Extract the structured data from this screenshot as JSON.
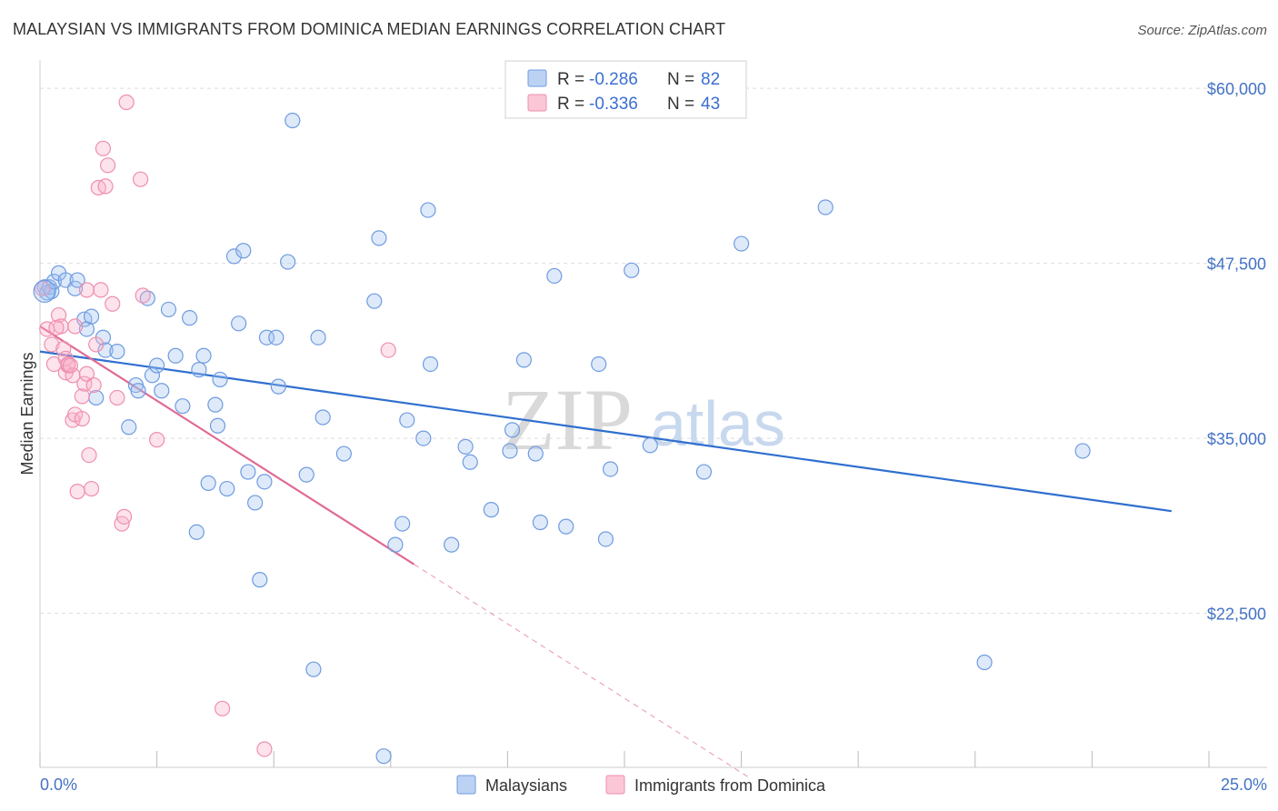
{
  "header": {
    "title": "MALAYSIAN VS IMMIGRANTS FROM DOMINICA MEDIAN EARNINGS CORRELATION CHART",
    "source": "Source: ZipAtlas.com"
  },
  "watermark": {
    "zip": "ZIP",
    "atlas": "atlas"
  },
  "legend": {
    "r_label": "R =",
    "n_label": "N =",
    "rows": [
      {
        "name": "Malaysians",
        "r": "-0.286",
        "n": "82",
        "fill": "#bcd2f3",
        "stroke": "#6f9be0"
      },
      {
        "name": "Immigrants from Dominica",
        "r": "-0.336",
        "n": "43",
        "fill": "#fbc7d7",
        "stroke": "#ee8fae"
      }
    ]
  },
  "colors": {
    "blue_point_fill": "rgba(160,195,240,0.35)",
    "blue_point_stroke": "#6f9be0",
    "blue_line": "#2f6fcf",
    "pink_point_fill": "rgba(248,175,200,0.35)",
    "pink_point_stroke": "#ee8fae",
    "pink_line": "#e06a95",
    "grid": "#dddddd",
    "axis_text": "#4472c4"
  },
  "chart_data": {
    "type": "scatter",
    "title": "MALAYSIAN VS IMMIGRANTS FROM DOMINICA MEDIAN EARNINGS CORRELATION CHART",
    "xlabel": "",
    "ylabel": "Median Earnings",
    "xlim": [
      0,
      25
    ],
    "ylim": [
      11500,
      61500
    ],
    "x_tick_labels": [
      "0.0%",
      "25.0%"
    ],
    "y_ticks": [
      {
        "value": 22500,
        "label": "$22,500"
      },
      {
        "value": 35000,
        "label": "$35,000"
      },
      {
        "value": 47500,
        "label": "$47,500"
      },
      {
        "value": 60000,
        "label": "$60,000"
      }
    ],
    "grid": true,
    "series": [
      {
        "name": "Malaysians",
        "r": -0.286,
        "n": 82,
        "trend": {
          "x0": 0.0,
          "y0": 41200,
          "x1": 24.2,
          "y1": 29800,
          "dashed_to_x": null
        },
        "points": [
          [
            0.1,
            45800
          ],
          [
            0.15,
            45400
          ],
          [
            0.2,
            45800
          ],
          [
            0.25,
            45500
          ],
          [
            0.3,
            46200
          ],
          [
            0.4,
            46800
          ],
          [
            0.55,
            46300
          ],
          [
            0.75,
            45700
          ],
          [
            0.8,
            46300
          ],
          [
            0.95,
            43500
          ],
          [
            1.0,
            42800
          ],
          [
            1.1,
            43700
          ],
          [
            1.2,
            37900
          ],
          [
            1.35,
            42200
          ],
          [
            1.4,
            41300
          ],
          [
            1.65,
            41200
          ],
          [
            1.9,
            35800
          ],
          [
            2.05,
            38800
          ],
          [
            2.1,
            38400
          ],
          [
            2.3,
            45000
          ],
          [
            2.4,
            39500
          ],
          [
            2.5,
            40200
          ],
          [
            2.6,
            38400
          ],
          [
            2.75,
            44200
          ],
          [
            2.9,
            40900
          ],
          [
            3.05,
            37300
          ],
          [
            3.2,
            43600
          ],
          [
            3.35,
            28300
          ],
          [
            3.4,
            39900
          ],
          [
            3.5,
            40900
          ],
          [
            3.6,
            31800
          ],
          [
            3.75,
            37400
          ],
          [
            3.8,
            35900
          ],
          [
            3.85,
            39200
          ],
          [
            4.0,
            31400
          ],
          [
            4.15,
            48000
          ],
          [
            4.25,
            43200
          ],
          [
            4.35,
            48400
          ],
          [
            4.45,
            32600
          ],
          [
            4.6,
            30400
          ],
          [
            4.7,
            24900
          ],
          [
            4.8,
            31900
          ],
          [
            4.85,
            42200
          ],
          [
            5.05,
            42200
          ],
          [
            5.1,
            38700
          ],
          [
            5.3,
            47600
          ],
          [
            5.4,
            57700
          ],
          [
            5.7,
            32400
          ],
          [
            5.85,
            18500
          ],
          [
            5.95,
            42200
          ],
          [
            6.05,
            36500
          ],
          [
            6.5,
            33900
          ],
          [
            7.15,
            44800
          ],
          [
            7.25,
            49300
          ],
          [
            7.35,
            12300
          ],
          [
            7.6,
            27400
          ],
          [
            7.75,
            28900
          ],
          [
            7.85,
            36300
          ],
          [
            8.2,
            35000
          ],
          [
            8.3,
            51300
          ],
          [
            8.35,
            40300
          ],
          [
            8.8,
            27400
          ],
          [
            9.1,
            34400
          ],
          [
            9.2,
            33300
          ],
          [
            9.65,
            29900
          ],
          [
            10.05,
            34100
          ],
          [
            10.1,
            35600
          ],
          [
            10.35,
            40600
          ],
          [
            10.6,
            33900
          ],
          [
            10.7,
            29000
          ],
          [
            11.0,
            46600
          ],
          [
            11.25,
            28700
          ],
          [
            11.95,
            40300
          ],
          [
            12.1,
            27800
          ],
          [
            12.2,
            32800
          ],
          [
            12.65,
            47000
          ],
          [
            13.05,
            34500
          ],
          [
            14.2,
            32600
          ],
          [
            15.0,
            48900
          ],
          [
            16.8,
            51500
          ],
          [
            20.2,
            19000
          ],
          [
            22.3,
            34100
          ]
        ]
      },
      {
        "name": "Immigrants from Dominica",
        "r": -0.336,
        "n": 43,
        "trend": {
          "x0": 0.0,
          "y0": 43000,
          "x1": 8.0,
          "y1": 26000,
          "dashed_to_x": 15.2
        },
        "points": [
          [
            0.05,
            45700
          ],
          [
            0.15,
            42800
          ],
          [
            0.25,
            41700
          ],
          [
            0.3,
            40300
          ],
          [
            0.4,
            43800
          ],
          [
            0.45,
            43000
          ],
          [
            0.5,
            41400
          ],
          [
            0.55,
            40700
          ],
          [
            0.55,
            39700
          ],
          [
            0.6,
            40200
          ],
          [
            0.6,
            40300
          ],
          [
            0.7,
            36300
          ],
          [
            0.7,
            39500
          ],
          [
            0.75,
            43000
          ],
          [
            0.75,
            36700
          ],
          [
            0.8,
            31200
          ],
          [
            0.9,
            38000
          ],
          [
            0.9,
            36400
          ],
          [
            0.95,
            38900
          ],
          [
            1.0,
            39600
          ],
          [
            1.0,
            45600
          ],
          [
            1.05,
            33800
          ],
          [
            1.1,
            31400
          ],
          [
            1.15,
            38800
          ],
          [
            1.2,
            41700
          ],
          [
            1.25,
            52900
          ],
          [
            1.3,
            45600
          ],
          [
            1.35,
            55700
          ],
          [
            1.4,
            53000
          ],
          [
            1.45,
            54500
          ],
          [
            1.55,
            44600
          ],
          [
            1.65,
            37900
          ],
          [
            1.75,
            28900
          ],
          [
            1.8,
            29400
          ],
          [
            1.85,
            59000
          ],
          [
            2.15,
            53500
          ],
          [
            2.2,
            45200
          ],
          [
            2.5,
            34900
          ],
          [
            3.9,
            15700
          ],
          [
            4.8,
            12800
          ],
          [
            7.45,
            41300
          ],
          [
            0.35,
            42900
          ],
          [
            0.65,
            40200
          ]
        ]
      }
    ]
  },
  "bottom_legend": [
    {
      "name": "Malaysians"
    },
    {
      "name": "Immigrants from Dominica"
    }
  ]
}
